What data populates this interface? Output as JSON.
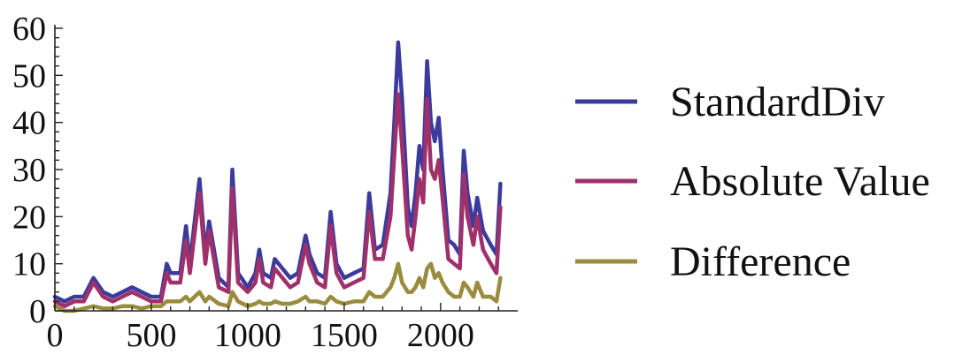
{
  "chart_data": {
    "type": "line",
    "title": "",
    "xlabel": "",
    "ylabel": "",
    "xlim": [
      0,
      2400
    ],
    "ylim": [
      0,
      60
    ],
    "x_ticks": [
      0,
      500,
      1000,
      1500,
      2000
    ],
    "y_ticks": [
      0,
      10,
      20,
      30,
      40,
      50,
      60
    ],
    "x_tick_labels": [
      "0",
      "500",
      "1000",
      "1500",
      "2000"
    ],
    "y_tick_labels": [
      "0",
      "10",
      "20",
      "30",
      "40",
      "50",
      "60"
    ],
    "grid": false,
    "legend_position": "right",
    "series": [
      {
        "name": "StandardDiv",
        "color": "#3b3b9e",
        "points": [
          [
            0,
            3
          ],
          [
            50,
            2
          ],
          [
            100,
            3
          ],
          [
            150,
            3
          ],
          [
            200,
            7
          ],
          [
            250,
            4
          ],
          [
            300,
            3
          ],
          [
            350,
            4
          ],
          [
            400,
            5
          ],
          [
            450,
            4
          ],
          [
            500,
            3
          ],
          [
            550,
            3
          ],
          [
            580,
            10
          ],
          [
            600,
            8
          ],
          [
            650,
            8
          ],
          [
            680,
            18
          ],
          [
            700,
            10
          ],
          [
            750,
            28
          ],
          [
            780,
            12
          ],
          [
            800,
            19
          ],
          [
            850,
            7
          ],
          [
            900,
            5
          ],
          [
            920,
            30
          ],
          [
            950,
            8
          ],
          [
            1000,
            5
          ],
          [
            1040,
            8
          ],
          [
            1060,
            13
          ],
          [
            1080,
            8
          ],
          [
            1120,
            7
          ],
          [
            1140,
            11
          ],
          [
            1180,
            9
          ],
          [
            1220,
            7
          ],
          [
            1260,
            8
          ],
          [
            1300,
            16
          ],
          [
            1320,
            12
          ],
          [
            1360,
            8
          ],
          [
            1400,
            7
          ],
          [
            1430,
            21
          ],
          [
            1460,
            10
          ],
          [
            1500,
            7
          ],
          [
            1550,
            8
          ],
          [
            1600,
            9
          ],
          [
            1630,
            25
          ],
          [
            1660,
            13
          ],
          [
            1700,
            14
          ],
          [
            1740,
            25
          ],
          [
            1760,
            40
          ],
          [
            1780,
            57
          ],
          [
            1800,
            45
          ],
          [
            1830,
            22
          ],
          [
            1850,
            18
          ],
          [
            1870,
            25
          ],
          [
            1890,
            35
          ],
          [
            1910,
            30
          ],
          [
            1930,
            53
          ],
          [
            1950,
            40
          ],
          [
            1970,
            36
          ],
          [
            1990,
            41
          ],
          [
            2010,
            30
          ],
          [
            2040,
            15
          ],
          [
            2070,
            14
          ],
          [
            2100,
            12
          ],
          [
            2120,
            34
          ],
          [
            2140,
            25
          ],
          [
            2170,
            18
          ],
          [
            2190,
            24
          ],
          [
            2220,
            17
          ],
          [
            2260,
            14
          ],
          [
            2290,
            12
          ],
          [
            2310,
            27
          ]
        ]
      },
      {
        "name": "Absolute Value",
        "color": "#a0306a",
        "points": [
          [
            0,
            2
          ],
          [
            50,
            1
          ],
          [
            100,
            2
          ],
          [
            150,
            2
          ],
          [
            200,
            6
          ],
          [
            250,
            3
          ],
          [
            300,
            2
          ],
          [
            350,
            3
          ],
          [
            400,
            4
          ],
          [
            450,
            3
          ],
          [
            500,
            2
          ],
          [
            550,
            2
          ],
          [
            580,
            8
          ],
          [
            600,
            6
          ],
          [
            650,
            6
          ],
          [
            680,
            15
          ],
          [
            700,
            8
          ],
          [
            750,
            25
          ],
          [
            780,
            10
          ],
          [
            800,
            17
          ],
          [
            850,
            5
          ],
          [
            900,
            4
          ],
          [
            920,
            26
          ],
          [
            950,
            6
          ],
          [
            1000,
            4
          ],
          [
            1040,
            6
          ],
          [
            1060,
            11
          ],
          [
            1080,
            6
          ],
          [
            1120,
            5
          ],
          [
            1140,
            9
          ],
          [
            1180,
            7
          ],
          [
            1220,
            5
          ],
          [
            1260,
            6
          ],
          [
            1300,
            14
          ],
          [
            1320,
            10
          ],
          [
            1360,
            6
          ],
          [
            1400,
            5
          ],
          [
            1430,
            18
          ],
          [
            1460,
            8
          ],
          [
            1500,
            5
          ],
          [
            1550,
            6
          ],
          [
            1600,
            7
          ],
          [
            1630,
            21
          ],
          [
            1660,
            11
          ],
          [
            1700,
            11
          ],
          [
            1740,
            20
          ],
          [
            1760,
            33
          ],
          [
            1780,
            46
          ],
          [
            1800,
            35
          ],
          [
            1830,
            16
          ],
          [
            1850,
            13
          ],
          [
            1870,
            20
          ],
          [
            1890,
            28
          ],
          [
            1910,
            23
          ],
          [
            1930,
            45
          ],
          [
            1950,
            30
          ],
          [
            1970,
            28
          ],
          [
            1990,
            32
          ],
          [
            2010,
            24
          ],
          [
            2040,
            11
          ],
          [
            2070,
            10
          ],
          [
            2100,
            9
          ],
          [
            2120,
            29
          ],
          [
            2140,
            20
          ],
          [
            2170,
            14
          ],
          [
            2190,
            20
          ],
          [
            2220,
            13
          ],
          [
            2260,
            10
          ],
          [
            2290,
            8
          ],
          [
            2310,
            22
          ]
        ]
      },
      {
        "name": "Difference",
        "color": "#9a8c3e",
        "points": [
          [
            0,
            1
          ],
          [
            50,
            0
          ],
          [
            100,
            0
          ],
          [
            150,
            0.5
          ],
          [
            200,
            1
          ],
          [
            250,
            0.5
          ],
          [
            300,
            0.5
          ],
          [
            350,
            1
          ],
          [
            400,
            1
          ],
          [
            450,
            0.5
          ],
          [
            500,
            1
          ],
          [
            550,
            1
          ],
          [
            580,
            2
          ],
          [
            600,
            2
          ],
          [
            650,
            2
          ],
          [
            680,
            3
          ],
          [
            700,
            2
          ],
          [
            750,
            4
          ],
          [
            780,
            2
          ],
          [
            800,
            3
          ],
          [
            850,
            1.5
          ],
          [
            900,
            1
          ],
          [
            920,
            4
          ],
          [
            950,
            2
          ],
          [
            1000,
            1
          ],
          [
            1040,
            1.5
          ],
          [
            1060,
            2
          ],
          [
            1080,
            1.5
          ],
          [
            1120,
            1.5
          ],
          [
            1140,
            2
          ],
          [
            1180,
            1.5
          ],
          [
            1220,
            1.5
          ],
          [
            1260,
            2
          ],
          [
            1300,
            3
          ],
          [
            1320,
            2
          ],
          [
            1360,
            2
          ],
          [
            1400,
            1.5
          ],
          [
            1430,
            3
          ],
          [
            1460,
            2
          ],
          [
            1500,
            1.5
          ],
          [
            1550,
            2
          ],
          [
            1600,
            2
          ],
          [
            1630,
            4
          ],
          [
            1660,
            3
          ],
          [
            1700,
            3
          ],
          [
            1740,
            5
          ],
          [
            1760,
            7
          ],
          [
            1780,
            10
          ],
          [
            1800,
            6
          ],
          [
            1830,
            4
          ],
          [
            1850,
            4
          ],
          [
            1870,
            5
          ],
          [
            1890,
            7
          ],
          [
            1910,
            5
          ],
          [
            1930,
            9
          ],
          [
            1950,
            10
          ],
          [
            1970,
            7
          ],
          [
            1990,
            8
          ],
          [
            2010,
            6
          ],
          [
            2040,
            4
          ],
          [
            2070,
            3
          ],
          [
            2100,
            3
          ],
          [
            2120,
            6
          ],
          [
            2140,
            5
          ],
          [
            2170,
            3
          ],
          [
            2190,
            6
          ],
          [
            2220,
            3
          ],
          [
            2260,
            3
          ],
          [
            2290,
            2
          ],
          [
            2310,
            7
          ]
        ]
      }
    ]
  }
}
